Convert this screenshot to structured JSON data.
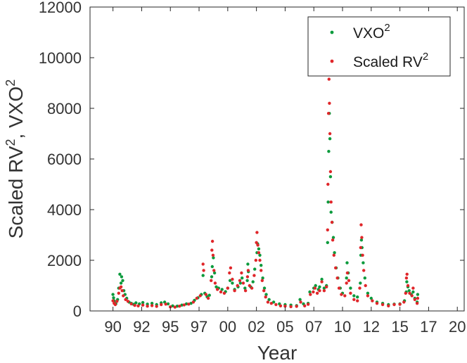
{
  "chart_data": {
    "type": "scatter",
    "title": "",
    "xlabel": "Year",
    "ylabel": "Scaled RV",
    "ylabel_parts": [
      "Scaled RV",
      "2",
      ", VXO",
      "2"
    ],
    "xlim": [
      1988,
      2020.6
    ],
    "ylim": [
      0,
      12000
    ],
    "grid": false,
    "legend_position": "top-right",
    "xticks": [
      {
        "value": 1990,
        "label": "90"
      },
      {
        "value": 1992.5,
        "label": "92"
      },
      {
        "value": 1995,
        "label": "95"
      },
      {
        "value": 1997.5,
        "label": "97"
      },
      {
        "value": 2000,
        "label": "00"
      },
      {
        "value": 2002.5,
        "label": "02"
      },
      {
        "value": 2005,
        "label": "05"
      },
      {
        "value": 2007.5,
        "label": "07"
      },
      {
        "value": 2010,
        "label": "10"
      },
      {
        "value": 2012.5,
        "label": "12"
      },
      {
        "value": 2015,
        "label": "15"
      },
      {
        "value": 2017.5,
        "label": "17"
      },
      {
        "value": 2020,
        "label": "20"
      }
    ],
    "yticks": [
      0,
      2000,
      4000,
      6000,
      8000,
      10000,
      12000
    ],
    "series": [
      {
        "name": "VXO",
        "name_sup": "2",
        "color": "#0a9a3c",
        "points": [
          [
            1990.0,
            650
          ],
          [
            1990.05,
            520
          ],
          [
            1990.1,
            400
          ],
          [
            1990.15,
            300
          ],
          [
            1990.25,
            280
          ],
          [
            1990.4,
            450
          ],
          [
            1990.5,
            900
          ],
          [
            1990.6,
            1450
          ],
          [
            1990.7,
            1100
          ],
          [
            1990.75,
            1350
          ],
          [
            1990.85,
            1200
          ],
          [
            1990.95,
            800
          ],
          [
            1991.05,
            650
          ],
          [
            1991.2,
            500
          ],
          [
            1991.4,
            350
          ],
          [
            1991.6,
            300
          ],
          [
            1991.8,
            260
          ],
          [
            1992.0,
            320
          ],
          [
            1992.3,
            280
          ],
          [
            1992.6,
            330
          ],
          [
            1993.0,
            270
          ],
          [
            1993.4,
            300
          ],
          [
            1993.8,
            250
          ],
          [
            1994.2,
            320
          ],
          [
            1994.5,
            350
          ],
          [
            1994.8,
            280
          ],
          [
            1995.2,
            200
          ],
          [
            1995.6,
            190
          ],
          [
            1996.0,
            230
          ],
          [
            1996.4,
            280
          ],
          [
            1996.8,
            300
          ],
          [
            1997.1,
            420
          ],
          [
            1997.4,
            520
          ],
          [
            1997.7,
            650
          ],
          [
            1997.85,
            1400
          ],
          [
            1998.0,
            700
          ],
          [
            1998.2,
            560
          ],
          [
            1998.4,
            620
          ],
          [
            1998.6,
            1350
          ],
          [
            1998.65,
            1750
          ],
          [
            1998.75,
            2100
          ],
          [
            1998.85,
            1500
          ],
          [
            1999.0,
            950
          ],
          [
            1999.2,
            900
          ],
          [
            1999.5,
            850
          ],
          [
            1999.8,
            760
          ],
          [
            2000.0,
            900
          ],
          [
            2000.2,
            1200
          ],
          [
            2000.4,
            1100
          ],
          [
            2000.6,
            850
          ],
          [
            2000.9,
            950
          ],
          [
            2001.1,
            1100
          ],
          [
            2001.25,
            1300
          ],
          [
            2001.5,
            900
          ],
          [
            2001.7,
            1200
          ],
          [
            2001.75,
            1850
          ],
          [
            2001.8,
            1550
          ],
          [
            2002.0,
            950
          ],
          [
            2002.2,
            1150
          ],
          [
            2002.35,
            1650
          ],
          [
            2002.55,
            2300
          ],
          [
            2002.6,
            2650
          ],
          [
            2002.7,
            2450
          ],
          [
            2002.8,
            2200
          ],
          [
            2002.9,
            1800
          ],
          [
            2003.05,
            1300
          ],
          [
            2003.2,
            900
          ],
          [
            2003.35,
            650
          ],
          [
            2003.6,
            450
          ],
          [
            2004.0,
            350
          ],
          [
            2004.5,
            280
          ],
          [
            2005.0,
            250
          ],
          [
            2005.5,
            230
          ],
          [
            2006.0,
            210
          ],
          [
            2006.3,
            450
          ],
          [
            2006.6,
            280
          ],
          [
            2007.0,
            300
          ],
          [
            2007.15,
            750
          ],
          [
            2007.5,
            900
          ],
          [
            2007.65,
            1000
          ],
          [
            2007.9,
            850
          ],
          [
            2008.0,
            950
          ],
          [
            2008.2,
            1250
          ],
          [
            2008.4,
            900
          ],
          [
            2008.6,
            1000
          ],
          [
            2008.7,
            2700
          ],
          [
            2008.75,
            4300
          ],
          [
            2008.8,
            6300
          ],
          [
            2008.85,
            7800
          ],
          [
            2008.9,
            6800
          ],
          [
            2008.95,
            5300
          ],
          [
            2009.0,
            3900
          ],
          [
            2009.1,
            3500
          ],
          [
            2009.2,
            2900
          ],
          [
            2009.3,
            2300
          ],
          [
            2009.45,
            1700
          ],
          [
            2009.6,
            1300
          ],
          [
            2009.8,
            900
          ],
          [
            2010.0,
            700
          ],
          [
            2010.35,
            1300
          ],
          [
            2010.4,
            1900
          ],
          [
            2010.5,
            1500
          ],
          [
            2010.7,
            900
          ],
          [
            2011.0,
            600
          ],
          [
            2011.3,
            550
          ],
          [
            2011.55,
            1100
          ],
          [
            2011.6,
            2200
          ],
          [
            2011.65,
            2800
          ],
          [
            2011.7,
            2500
          ],
          [
            2011.8,
            1900
          ],
          [
            2011.95,
            1300
          ],
          [
            2012.2,
            700
          ],
          [
            2012.5,
            500
          ],
          [
            2013.0,
            350
          ],
          [
            2013.5,
            300
          ],
          [
            2014.0,
            250
          ],
          [
            2014.5,
            270
          ],
          [
            2015.0,
            280
          ],
          [
            2015.4,
            400
          ],
          [
            2015.55,
            750
          ],
          [
            2015.6,
            1150
          ],
          [
            2015.7,
            950
          ],
          [
            2015.8,
            800
          ],
          [
            2016.0,
            650
          ],
          [
            2016.15,
            750
          ],
          [
            2016.3,
            500
          ],
          [
            2016.5,
            350
          ],
          [
            2016.55,
            650
          ]
        ]
      },
      {
        "name": "Scaled RV",
        "name_sup": "2",
        "color": "#e0262a",
        "points": [
          [
            1990.0,
            400
          ],
          [
            1990.1,
            300
          ],
          [
            1990.2,
            250
          ],
          [
            1990.35,
            380
          ],
          [
            1990.5,
            700
          ],
          [
            1990.6,
            900
          ],
          [
            1990.7,
            950
          ],
          [
            1990.8,
            800
          ],
          [
            1990.9,
            600
          ],
          [
            1991.1,
            450
          ],
          [
            1991.3,
            380
          ],
          [
            1991.6,
            280
          ],
          [
            1991.9,
            220
          ],
          [
            1992.2,
            200
          ],
          [
            1992.6,
            230
          ],
          [
            1993.0,
            190
          ],
          [
            1993.4,
            210
          ],
          [
            1993.8,
            180
          ],
          [
            1994.2,
            250
          ],
          [
            1994.6,
            270
          ],
          [
            1995.0,
            160
          ],
          [
            1995.4,
            150
          ],
          [
            1995.8,
            190
          ],
          [
            1996.2,
            240
          ],
          [
            1996.6,
            270
          ],
          [
            1997.0,
            350
          ],
          [
            1997.3,
            500
          ],
          [
            1997.6,
            600
          ],
          [
            1997.85,
            1850
          ],
          [
            1997.9,
            1600
          ],
          [
            1998.1,
            650
          ],
          [
            1998.3,
            500
          ],
          [
            1998.55,
            1200
          ],
          [
            1998.62,
            2400
          ],
          [
            1998.67,
            2750
          ],
          [
            1998.72,
            2200
          ],
          [
            1998.8,
            1600
          ],
          [
            1998.9,
            1100
          ],
          [
            1999.1,
            850
          ],
          [
            1999.4,
            750
          ],
          [
            1999.7,
            700
          ],
          [
            2000.0,
            900
          ],
          [
            2000.15,
            1500
          ],
          [
            2000.25,
            1700
          ],
          [
            2000.4,
            1250
          ],
          [
            2000.6,
            800
          ],
          [
            2000.85,
            1000
          ],
          [
            2001.05,
            1200
          ],
          [
            2001.2,
            1500
          ],
          [
            2001.35,
            1100
          ],
          [
            2001.55,
            800
          ],
          [
            2001.72,
            1350
          ],
          [
            2001.78,
            1600
          ],
          [
            2001.9,
            1000
          ],
          [
            2002.1,
            900
          ],
          [
            2002.3,
            1400
          ],
          [
            2002.45,
            2000
          ],
          [
            2002.5,
            2700
          ],
          [
            2002.55,
            3100
          ],
          [
            2002.62,
            2600
          ],
          [
            2002.7,
            2300
          ],
          [
            2002.8,
            2000
          ],
          [
            2002.9,
            1600
          ],
          [
            2003.0,
            1200
          ],
          [
            2003.15,
            800
          ],
          [
            2003.3,
            550
          ],
          [
            2003.5,
            350
          ],
          [
            2003.8,
            300
          ],
          [
            2004.2,
            250
          ],
          [
            2004.6,
            200
          ],
          [
            2005.0,
            190
          ],
          [
            2005.5,
            170
          ],
          [
            2006.0,
            180
          ],
          [
            2006.35,
            350
          ],
          [
            2006.7,
            200
          ],
          [
            2007.0,
            260
          ],
          [
            2007.2,
            650
          ],
          [
            2007.45,
            750
          ],
          [
            2007.6,
            900
          ],
          [
            2007.8,
            700
          ],
          [
            2008.0,
            800
          ],
          [
            2008.2,
            1150
          ],
          [
            2008.4,
            800
          ],
          [
            2008.6,
            950
          ],
          [
            2008.7,
            3200
          ],
          [
            2008.73,
            5000
          ],
          [
            2008.78,
            7800
          ],
          [
            2008.82,
            9150
          ],
          [
            2008.86,
            8200
          ],
          [
            2008.9,
            7000
          ],
          [
            2008.95,
            5500
          ],
          [
            2009.0,
            4300
          ],
          [
            2009.08,
            3500
          ],
          [
            2009.15,
            2800
          ],
          [
            2009.25,
            2200
          ],
          [
            2009.4,
            1700
          ],
          [
            2009.55,
            1300
          ],
          [
            2009.7,
            900
          ],
          [
            2009.9,
            650
          ],
          [
            2010.2,
            600
          ],
          [
            2010.35,
            1100
          ],
          [
            2010.42,
            1500
          ],
          [
            2010.55,
            1200
          ],
          [
            2010.7,
            700
          ],
          [
            2011.0,
            450
          ],
          [
            2011.3,
            400
          ],
          [
            2011.5,
            900
          ],
          [
            2011.58,
            2500
          ],
          [
            2011.62,
            3400
          ],
          [
            2011.68,
            2900
          ],
          [
            2011.75,
            2200
          ],
          [
            2011.85,
            1600
          ],
          [
            2012.0,
            1000
          ],
          [
            2012.2,
            600
          ],
          [
            2012.6,
            400
          ],
          [
            2013.0,
            300
          ],
          [
            2013.5,
            250
          ],
          [
            2014.0,
            200
          ],
          [
            2014.5,
            250
          ],
          [
            2015.0,
            260
          ],
          [
            2015.35,
            350
          ],
          [
            2015.5,
            700
          ],
          [
            2015.57,
            1300
          ],
          [
            2015.62,
            1450
          ],
          [
            2015.7,
            1000
          ],
          [
            2015.85,
            700
          ],
          [
            2016.05,
            600
          ],
          [
            2016.15,
            900
          ],
          [
            2016.3,
            450
          ],
          [
            2016.5,
            300
          ],
          [
            2016.55,
            500
          ]
        ]
      }
    ]
  }
}
